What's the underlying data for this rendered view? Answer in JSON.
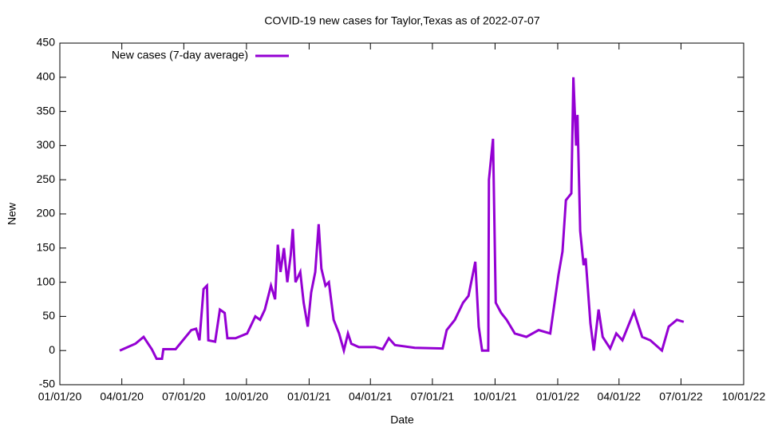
{
  "chart_data": {
    "type": "line",
    "title": "COVID-19 new cases for Taylor,Texas as of 2022-07-07",
    "x_label": "Date",
    "y_label": "New",
    "legend": "top-left",
    "x": [
      "2020-03-29",
      "2020-04-21",
      "2020-05-03",
      "2020-05-15",
      "2020-05-22",
      "2020-05-30",
      "2020-06-01",
      "2020-06-19",
      "2020-07-12",
      "2020-07-19",
      "2020-07-24",
      "2020-07-30",
      "2020-08-04",
      "2020-08-06",
      "2020-08-16",
      "2020-08-23",
      "2020-08-30",
      "2020-09-03",
      "2020-09-15",
      "2020-10-02",
      "2020-10-14",
      "2020-10-21",
      "2020-10-28",
      "2020-11-06",
      "2020-11-12",
      "2020-11-16",
      "2020-11-20",
      "2020-11-25",
      "2020-11-30",
      "2020-12-05",
      "2020-12-08",
      "2020-12-12",
      "2020-12-19",
      "2020-12-24",
      "2020-12-30",
      "2021-01-04",
      "2021-01-10",
      "2021-01-15",
      "2021-01-19",
      "2021-01-25",
      "2021-01-30",
      "2021-02-06",
      "2021-02-14",
      "2021-02-21",
      "2021-02-27",
      "2021-03-04",
      "2021-03-15",
      "2021-04-08",
      "2021-04-19",
      "2021-04-28",
      "2021-05-07",
      "2021-06-05",
      "2021-07-16",
      "2021-07-22",
      "2021-08-03",
      "2021-08-15",
      "2021-08-23",
      "2021-09-02",
      "2021-09-07",
      "2021-09-12",
      "2021-09-21",
      "2021-09-22",
      "2021-09-28",
      "2021-10-02",
      "2021-10-10",
      "2021-10-18",
      "2021-10-30",
      "2021-11-16",
      "2021-12-04",
      "2021-12-21",
      "2022-01-02",
      "2022-01-08",
      "2022-01-13",
      "2022-01-17",
      "2022-01-21",
      "2022-01-24",
      "2022-01-28",
      "2022-01-30",
      "2022-02-03",
      "2022-02-08",
      "2022-02-11",
      "2022-02-18",
      "2022-02-23",
      "2022-03-02",
      "2022-03-08",
      "2022-03-19",
      "2022-03-28",
      "2022-04-06",
      "2022-04-23",
      "2022-05-05",
      "2022-05-17",
      "2022-06-03",
      "2022-06-13",
      "2022-06-25",
      "2022-07-05"
    ],
    "series": [
      {
        "name": "New cases (7-day average)",
        "color": "#9400d3",
        "values": [
          0,
          10,
          20,
          2,
          -12,
          -12,
          2,
          2,
          30,
          32,
          15,
          90,
          95,
          15,
          13,
          60,
          55,
          18,
          18,
          25,
          50,
          45,
          60,
          95,
          75,
          155,
          115,
          150,
          100,
          140,
          178,
          100,
          115,
          70,
          35,
          85,
          115,
          185,
          120,
          95,
          100,
          45,
          25,
          0,
          25,
          10,
          5,
          5,
          2,
          18,
          8,
          4,
          3,
          30,
          45,
          70,
          80,
          130,
          35,
          0,
          0,
          250,
          310,
          70,
          55,
          45,
          25,
          20,
          30,
          25,
          110,
          145,
          220,
          225,
          230,
          400,
          300,
          345,
          175,
          125,
          135,
          40,
          0,
          60,
          20,
          3,
          25,
          15,
          57,
          20,
          15,
          0,
          35,
          45,
          42
        ]
      }
    ],
    "xlim": [
      "2020-01-01",
      "2022-10-01"
    ],
    "xticks": [
      {
        "value": "2020-01-01",
        "label": "01/01/20"
      },
      {
        "value": "2020-04-01",
        "label": "04/01/20"
      },
      {
        "value": "2020-07-01",
        "label": "07/01/20"
      },
      {
        "value": "2020-10-01",
        "label": "10/01/20"
      },
      {
        "value": "2021-01-01",
        "label": "01/01/21"
      },
      {
        "value": "2021-04-01",
        "label": "04/01/21"
      },
      {
        "value": "2021-07-01",
        "label": "07/01/21"
      },
      {
        "value": "2021-10-01",
        "label": "10/01/21"
      },
      {
        "value": "2022-01-01",
        "label": "01/01/22"
      },
      {
        "value": "2022-04-01",
        "label": "04/01/22"
      },
      {
        "value": "2022-07-01",
        "label": "07/01/22"
      },
      {
        "value": "2022-10-01",
        "label": "10/01/22"
      }
    ],
    "ylim": [
      -50,
      450
    ],
    "yticks": [
      -50,
      0,
      50,
      100,
      150,
      200,
      250,
      300,
      350,
      400,
      450
    ]
  }
}
